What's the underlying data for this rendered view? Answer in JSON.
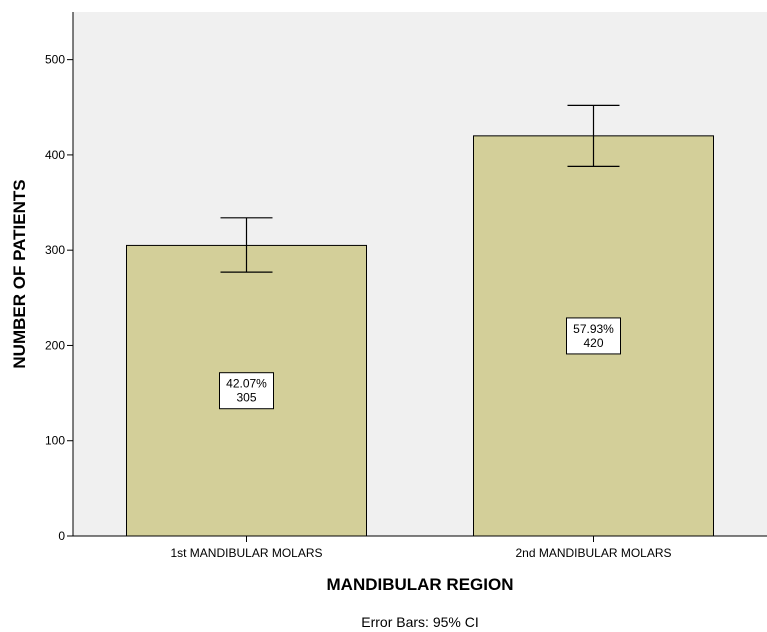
{
  "chart_data": {
    "type": "bar",
    "categories": [
      "1st MANDIBULAR MOLARS",
      "2nd MANDIBULAR MOLARS"
    ],
    "values": [
      305,
      420
    ],
    "percent_labels": [
      "42.07%",
      "57.93%"
    ],
    "count_labels": [
      "305",
      "420"
    ],
    "error_bars": [
      {
        "lower": 277,
        "upper": 334
      },
      {
        "lower": 388,
        "upper": 452
      }
    ],
    "title": "",
    "xlabel": "MANDIBULAR REGION",
    "ylabel": "NUMBER OF PATIENTS",
    "ylim": [
      0,
      550
    ],
    "yticks": [
      0,
      100,
      200,
      300,
      400,
      500
    ],
    "ytick_labels": [
      "0",
      "100",
      "200",
      "300",
      "400",
      "500"
    ],
    "footnote": "Error Bars: 95% CI",
    "grid": false,
    "legend": "none",
    "colors": {
      "bar_fill": "#d3cf99",
      "plot_background": "#f0f0f0",
      "axis": "#000000"
    }
  }
}
